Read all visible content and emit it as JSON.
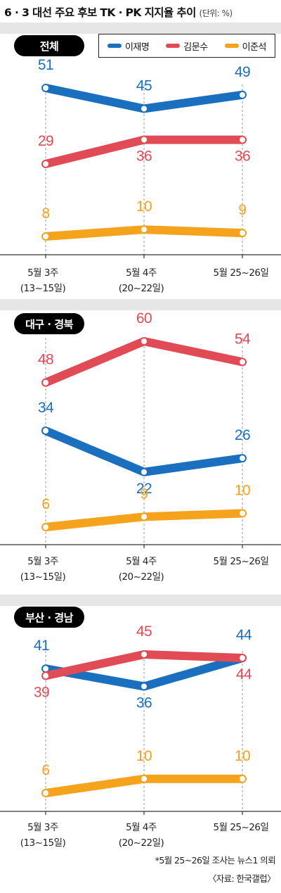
{
  "header": {
    "title": "6 · 3 대선 주요 후보 TK · PK 지지율 추이",
    "unit": "(단위: %)"
  },
  "legend": [
    {
      "name": "이재명",
      "color": "#1a6fbe"
    },
    {
      "name": "김문수",
      "color": "#e04b55"
    },
    {
      "name": "이준석",
      "color": "#f5a21c"
    }
  ],
  "chart_data": [
    {
      "type": "line",
      "title": "전체",
      "categories": [
        [
          "5월 3주",
          "(13~15일)"
        ],
        [
          "5월 4주",
          "(20~22일)"
        ],
        [
          "5월 25~26일"
        ]
      ],
      "series": [
        {
          "name": "이재명",
          "values": [
            51,
            45,
            49
          ]
        },
        {
          "name": "김문수",
          "values": [
            29,
            36,
            36
          ]
        },
        {
          "name": "이준석",
          "values": [
            8,
            10,
            9
          ]
        }
      ]
    },
    {
      "type": "line",
      "title": "대구 · 경북",
      "categories": [
        [
          "5월 3주",
          "(13~15일)"
        ],
        [
          "5월 4주",
          "(20~22일)"
        ],
        [
          "5월 25~26일"
        ]
      ],
      "series": [
        {
          "name": "이재명",
          "values": [
            34,
            22,
            26
          ]
        },
        {
          "name": "김문수",
          "values": [
            48,
            60,
            54
          ]
        },
        {
          "name": "이준석",
          "values": [
            6,
            9,
            10
          ]
        }
      ]
    },
    {
      "type": "line",
      "title": "부산 · 경남",
      "categories": [
        [
          "5월 3주",
          "(13~15일)"
        ],
        [
          "5월 4주",
          "(20~22일)"
        ],
        [
          "5월 25~26일"
        ]
      ],
      "series": [
        {
          "name": "이재명",
          "values": [
            41,
            36,
            44
          ]
        },
        {
          "name": "김문수",
          "values": [
            39,
            45,
            44
          ]
        },
        {
          "name": "이준석",
          "values": [
            6,
            10,
            10
          ]
        }
      ]
    }
  ],
  "footnotes": {
    "note": "*5월 25~26일 조사는 뉴스1 의뢰",
    "source": "〈자료: 한국갤럽〉"
  }
}
